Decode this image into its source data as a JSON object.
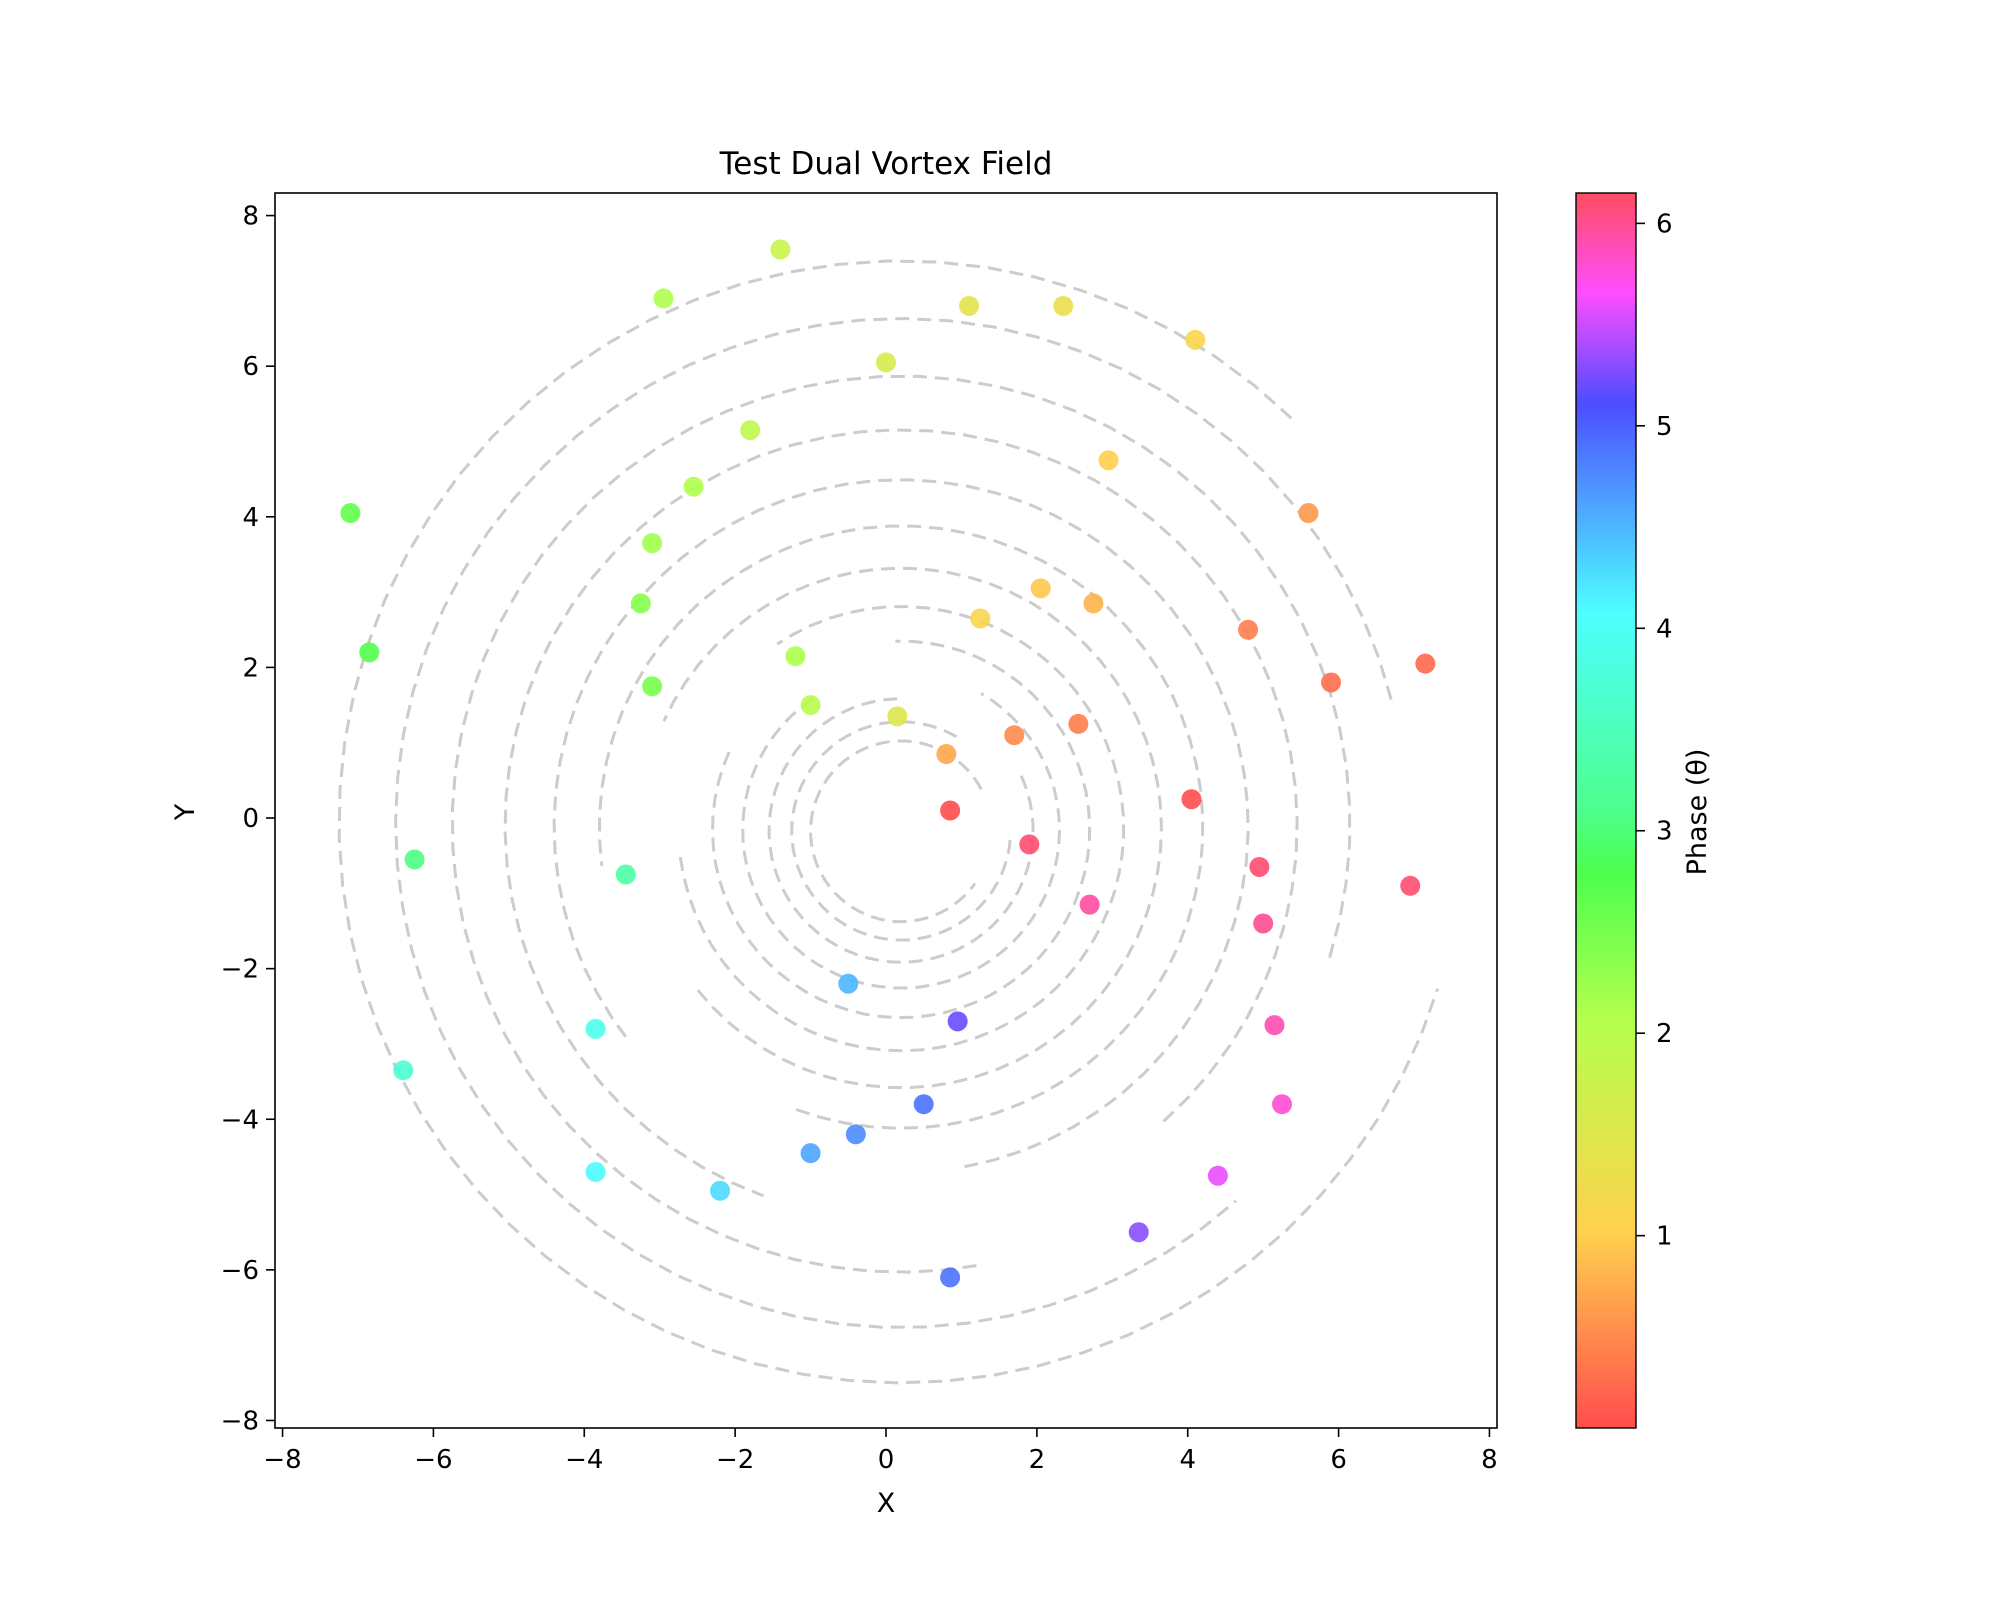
{
  "chart_data": {
    "type": "scatter",
    "title": "Test Dual Vortex Field",
    "xlabel": "X",
    "ylabel": "Y",
    "xlim": [
      -8.1,
      8.1
    ],
    "ylim": [
      -8.1,
      8.3
    ],
    "xticks": [
      -8,
      -6,
      -4,
      -2,
      0,
      2,
      4,
      6,
      8
    ],
    "yticks": [
      -8,
      -6,
      -4,
      -2,
      0,
      2,
      4,
      6,
      8
    ],
    "colorbar": {
      "label": "Phase (θ)",
      "range": [
        0.05,
        6.15
      ],
      "ticks": [
        1,
        2,
        3,
        4,
        5,
        6
      ],
      "colormap": "hsv"
    },
    "spiral_guides": {
      "style": "dashed",
      "color": "#cccccc",
      "description": "concentric dashed spiral arcs centred near (0.2, -0.2)"
    },
    "points": [
      {
        "x": 0.85,
        "y": 0.1,
        "phase": 0.05
      },
      {
        "x": 0.8,
        "y": 0.85,
        "phase": 0.7
      },
      {
        "x": 0.15,
        "y": 1.35,
        "phase": 1.5
      },
      {
        "x": -1.0,
        "y": 1.5,
        "phase": 2.0
      },
      {
        "x": -1.2,
        "y": 2.15,
        "phase": 2.1
      },
      {
        "x": -3.1,
        "y": 1.75,
        "phase": 2.5
      },
      {
        "x": -3.25,
        "y": 2.85,
        "phase": 2.4
      },
      {
        "x": -3.1,
        "y": 3.65,
        "phase": 2.2
      },
      {
        "x": -2.55,
        "y": 4.4,
        "phase": 2.1
      },
      {
        "x": -1.8,
        "y": 5.15,
        "phase": 1.9
      },
      {
        "x": -2.95,
        "y": 6.9,
        "phase": 2.1
      },
      {
        "x": -1.4,
        "y": 7.55,
        "phase": 1.8
      },
      {
        "x": 0.0,
        "y": 6.05,
        "phase": 1.6
      },
      {
        "x": 1.1,
        "y": 6.8,
        "phase": 1.4
      },
      {
        "x": 2.35,
        "y": 6.8,
        "phase": 1.3
      },
      {
        "x": 4.1,
        "y": 6.35,
        "phase": 1.1
      },
      {
        "x": 2.95,
        "y": 4.75,
        "phase": 1.0
      },
      {
        "x": 2.05,
        "y": 3.05,
        "phase": 0.95
      },
      {
        "x": 1.25,
        "y": 2.65,
        "phase": 1.1
      },
      {
        "x": 2.75,
        "y": 2.85,
        "phase": 0.8
      },
      {
        "x": 1.7,
        "y": 1.1,
        "phase": 0.5
      },
      {
        "x": 2.55,
        "y": 1.25,
        "phase": 0.4
      },
      {
        "x": 4.8,
        "y": 2.5,
        "phase": 0.4
      },
      {
        "x": 5.6,
        "y": 4.05,
        "phase": 0.6
      },
      {
        "x": 5.9,
        "y": 1.8,
        "phase": 0.3
      },
      {
        "x": 7.15,
        "y": 2.05,
        "phase": 0.25
      },
      {
        "x": 4.05,
        "y": 0.25,
        "phase": 0.05
      },
      {
        "x": 1.9,
        "y": -0.35,
        "phase": 6.1
      },
      {
        "x": 4.95,
        "y": -0.65,
        "phase": 6.1
      },
      {
        "x": 6.95,
        "y": -0.9,
        "phase": 6.1
      },
      {
        "x": 5.0,
        "y": -1.4,
        "phase": 6.0
      },
      {
        "x": 2.7,
        "y": -1.15,
        "phase": 5.95
      },
      {
        "x": 5.15,
        "y": -2.75,
        "phase": 5.9
      },
      {
        "x": 5.25,
        "y": -3.8,
        "phase": 5.8
      },
      {
        "x": 4.4,
        "y": -4.75,
        "phase": 5.6
      },
      {
        "x": 3.35,
        "y": -5.5,
        "phase": 5.3
      },
      {
        "x": 0.85,
        "y": -6.1,
        "phase": 4.9
      },
      {
        "x": 0.95,
        "y": -2.7,
        "phase": 5.2
      },
      {
        "x": 0.5,
        "y": -3.8,
        "phase": 4.9
      },
      {
        "x": -0.4,
        "y": -4.2,
        "phase": 4.75
      },
      {
        "x": -1.0,
        "y": -4.45,
        "phase": 4.6
      },
      {
        "x": -0.5,
        "y": -2.2,
        "phase": 4.5
      },
      {
        "x": -2.2,
        "y": -4.95,
        "phase": 4.3
      },
      {
        "x": -3.85,
        "y": -4.7,
        "phase": 4.1
      },
      {
        "x": -3.85,
        "y": -2.8,
        "phase": 3.9
      },
      {
        "x": -6.4,
        "y": -3.35,
        "phase": 3.7
      },
      {
        "x": -3.45,
        "y": -0.75,
        "phase": 3.3
      },
      {
        "x": -6.25,
        "y": -0.55,
        "phase": 3.05
      },
      {
        "x": -6.85,
        "y": 2.2,
        "phase": 2.75
      },
      {
        "x": -7.1,
        "y": 4.05,
        "phase": 2.65
      }
    ]
  }
}
